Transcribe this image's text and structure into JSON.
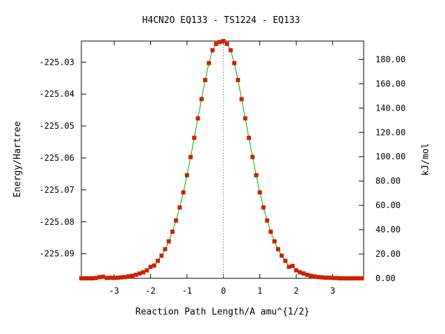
{
  "chart_data": {
    "type": "line",
    "title": "H4CN2O   EQ133 - TS1224 - EQ133",
    "xlabel": "Reaction Path Length/A amu^{1/2}",
    "ylabel": "Energy/Hartree",
    "y2label": "kJ/mol",
    "xlim": [
      -3.9,
      3.85
    ],
    "ylim": [
      -225.0977,
      -225.0234
    ],
    "y2lim": [
      0,
      195.1
    ],
    "x_ticks": [
      "-3",
      "-2",
      "-1",
      "0",
      "1",
      "2",
      "3"
    ],
    "x_tick_values": [
      -3,
      -2,
      -1,
      0,
      1,
      2,
      3
    ],
    "y_ticks": [
      "-225.03",
      "-225.04",
      "-225.05",
      "-225.06",
      "-225.07",
      "-225.08",
      "-225.09"
    ],
    "y_tick_values": [
      -225.03,
      -225.04,
      -225.05,
      -225.06,
      -225.07,
      -225.08,
      -225.09
    ],
    "y2_ticks": [
      "0.00",
      "20.00",
      "40.00",
      "60.00",
      "80.00",
      "100.00",
      "120.00",
      "140.00",
      "160.00",
      "180.00"
    ],
    "y2_tick_values": [
      0,
      20,
      40,
      60,
      80,
      100,
      120,
      140,
      160,
      180
    ],
    "ts_x": 0,
    "grid": false,
    "colors": {
      "line": "#00b000",
      "points": "#cc2200",
      "ts_marker": "#999999",
      "axes": "#000000"
    },
    "series": [
      {
        "x": [
          -3.9,
          -3.8,
          -3.7,
          -3.6,
          -3.5,
          -3.4,
          -3.3,
          -3.2,
          -3.1,
          -3.0,
          -2.9,
          -2.8,
          -2.7,
          -2.6,
          -2.5,
          -2.4,
          -2.3,
          -2.2,
          -2.1,
          -2.0,
          -1.9,
          -1.8,
          -1.7,
          -1.6,
          -1.5,
          -1.4,
          -1.3,
          -1.2,
          -1.1,
          -1.0,
          -0.9,
          -0.8,
          -0.7,
          -0.6,
          -0.5,
          -0.4,
          -0.3,
          -0.2,
          -0.1,
          0.0,
          0.1,
          0.2,
          0.3,
          0.4,
          0.5,
          0.6,
          0.7,
          0.8,
          0.9,
          1.0,
          1.1,
          1.2,
          1.3,
          1.4,
          1.5,
          1.6,
          1.7,
          1.8,
          1.9,
          2.0,
          2.1,
          2.2,
          2.3,
          2.4,
          2.5,
          2.6,
          2.7,
          2.8,
          2.9,
          3.0,
          3.1,
          3.2,
          3.3,
          3.4,
          3.5,
          3.6,
          3.7,
          3.8
        ],
        "y": [
          -225.0977,
          -225.0977,
          -225.0977,
          -225.0977,
          -225.0976,
          -225.0973,
          -225.0972,
          -225.0976,
          -225.0975,
          -225.0976,
          -225.0975,
          -225.0974,
          -225.0973,
          -225.0971,
          -225.0969,
          -225.0966,
          -225.0962,
          -225.0958,
          -225.0952,
          -225.0941,
          -225.0937,
          -225.0922,
          -225.0906,
          -225.0886,
          -225.0861,
          -225.0831,
          -225.0796,
          -225.0755,
          -225.0708,
          -225.0654,
          -225.0597,
          -225.0537,
          -225.0476,
          -225.0416,
          -225.0356,
          -225.0303,
          -225.0263,
          -225.0243,
          -225.0237,
          -225.0234,
          -225.0243,
          -225.0263,
          -225.0303,
          -225.0356,
          -225.0416,
          -225.0476,
          -225.0537,
          -225.0597,
          -225.0654,
          -225.0708,
          -225.0755,
          -225.0796,
          -225.0831,
          -225.0861,
          -225.0886,
          -225.0906,
          -225.0922,
          -225.0941,
          -225.0938,
          -225.0952,
          -225.0958,
          -225.0962,
          -225.0966,
          -225.0969,
          -225.0971,
          -225.0973,
          -225.0974,
          -225.0975,
          -225.0975,
          -225.0976,
          -225.0976,
          -225.0977,
          -225.0977,
          -225.0977,
          -225.0977,
          -225.0977,
          -225.0977,
          -225.0977
        ]
      }
    ]
  }
}
